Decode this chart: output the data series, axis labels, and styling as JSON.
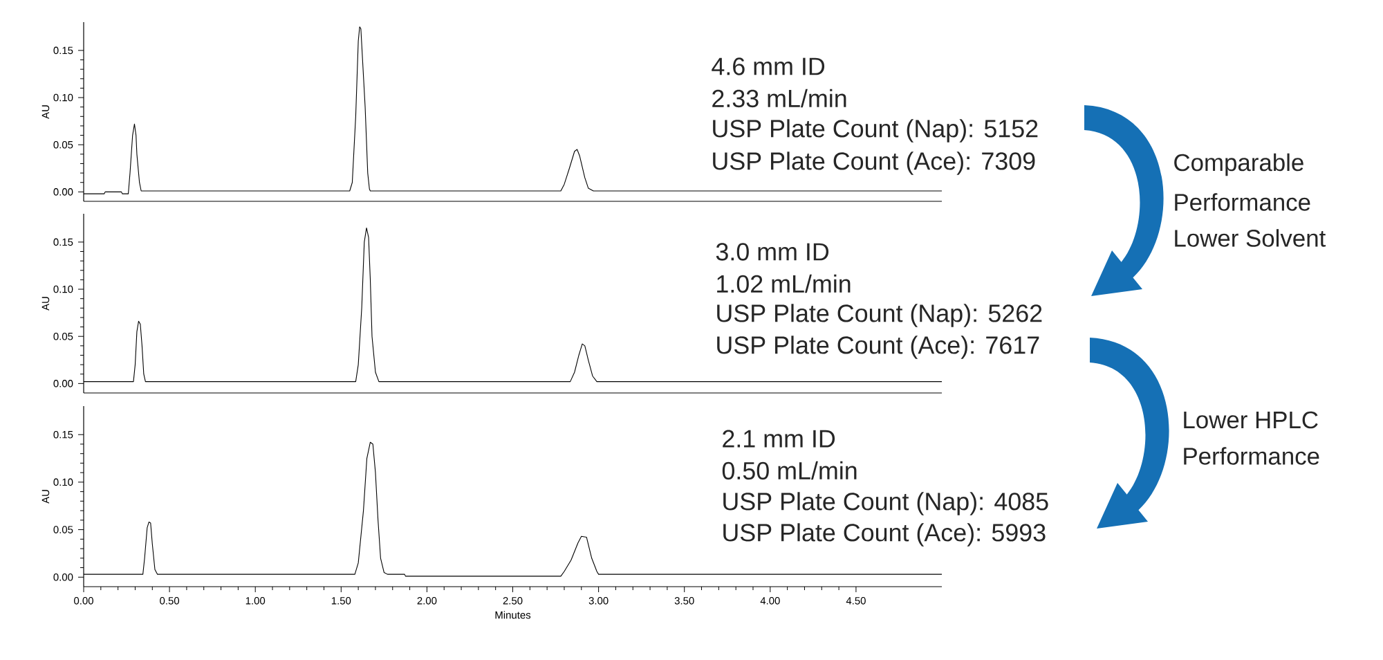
{
  "chart_data": [
    {
      "type": "line",
      "ylabel": "AU",
      "xlim": [
        0,
        5.0
      ],
      "ylim": [
        -0.01,
        0.18
      ],
      "tick_labels": "y",
      "yticks": [
        {
          "value": 0,
          "label": "0.00"
        },
        {
          "value": 0.05,
          "label": "0.05"
        },
        {
          "value": 0.1,
          "label": "0.10"
        },
        {
          "value": 0.15,
          "label": "0.15"
        }
      ],
      "annotations": [
        "4.6 mm ID",
        "2.33 mL/min",
        "USP Plate Count (Nap): 5152",
        "USP Plate Count (Ace): 7309",
        "Comparable",
        "Performance",
        "Lower Solvent"
      ],
      "series": [
        {
          "color": "#000000",
          "x": [
            0,
            0.12,
            0.125,
            0.22,
            0.225,
            0.26,
            0.27,
            0.285,
            0.296,
            0.305,
            0.31,
            0.325,
            0.335,
            1.55,
            1.565,
            1.585,
            1.6,
            1.608,
            1.615,
            1.64,
            1.655,
            1.665,
            1.67,
            2.78,
            2.8,
            2.83,
            2.86,
            2.875,
            2.89,
            2.92,
            2.94,
            2.97,
            5.0
          ],
          "values": [
            -0.002,
            -0.002,
            0,
            0,
            -0.002,
            -0.002,
            0.02,
            0.06,
            0.072,
            0.06,
            0.04,
            0.01,
            0.001,
            0.001,
            0.01,
            0.08,
            0.16,
            0.175,
            0.173,
            0.09,
            0.02,
            0.003,
            0.001,
            0.001,
            0.008,
            0.025,
            0.043,
            0.045,
            0.038,
            0.015,
            0.004,
            0.001,
            0.001
          ]
        }
      ]
    },
    {
      "type": "line",
      "ylabel": "AU",
      "xlim": [
        0,
        5.0
      ],
      "ylim": [
        -0.01,
        0.18
      ],
      "tick_labels": "y",
      "yticks": [
        {
          "value": 0,
          "label": "0.00"
        },
        {
          "value": 0.05,
          "label": "0.05"
        },
        {
          "value": 0.1,
          "label": "0.10"
        },
        {
          "value": 0.15,
          "label": "0.15"
        }
      ],
      "annotations": [
        "3.0 mm ID",
        "1.02 mL/min",
        "USP Plate Count (Nap): 5262",
        "USP Plate Count (Ace): 7617",
        "Lower HPLC",
        "Performance"
      ],
      "series": [
        {
          "color": "#000000",
          "x": [
            0,
            0.29,
            0.3,
            0.31,
            0.32,
            0.33,
            0.34,
            0.35,
            0.36,
            1.585,
            1.6,
            1.62,
            1.635,
            1.648,
            1.66,
            1.67,
            1.68,
            1.7,
            1.72,
            2.835,
            2.86,
            2.885,
            2.905,
            2.92,
            2.94,
            2.965,
            2.99,
            5.0
          ],
          "values": [
            0.002,
            0.002,
            0.02,
            0.055,
            0.066,
            0.063,
            0.04,
            0.01,
            0.002,
            0.002,
            0.02,
            0.08,
            0.15,
            0.165,
            0.155,
            0.11,
            0.05,
            0.012,
            0.002,
            0.002,
            0.012,
            0.03,
            0.042,
            0.04,
            0.025,
            0.008,
            0.002,
            0.002
          ]
        }
      ]
    },
    {
      "type": "line",
      "xlabel": "Minutes",
      "ylabel": "AU",
      "xlim": [
        0,
        5.0
      ],
      "ylim": [
        -0.01,
        0.18
      ],
      "xticks": [
        {
          "value": 0,
          "label": "0.00"
        },
        {
          "value": 0.5,
          "label": "0.50"
        },
        {
          "value": 1.0,
          "label": "1.00"
        },
        {
          "value": 1.5,
          "label": "1.50"
        },
        {
          "value": 2.0,
          "label": "2.00"
        },
        {
          "value": 2.5,
          "label": "2.50"
        },
        {
          "value": 3.0,
          "label": "3.00"
        },
        {
          "value": 3.5,
          "label": "3.50"
        },
        {
          "value": 4.0,
          "label": "4.00"
        },
        {
          "value": 4.5,
          "label": "4.50"
        }
      ],
      "yticks": [
        {
          "value": 0,
          "label": "0.00"
        },
        {
          "value": 0.05,
          "label": "0.05"
        },
        {
          "value": 0.1,
          "label": "0.10"
        },
        {
          "value": 0.15,
          "label": "0.15"
        }
      ],
      "annotations": [
        "2.1 mm ID",
        "0.50 mL/min",
        "USP Plate Count (Nap): 4085",
        "USP Plate Count (Ace): 5993"
      ],
      "series": [
        {
          "color": "#000000",
          "x": [
            0,
            0.345,
            0.355,
            0.37,
            0.38,
            0.39,
            0.4,
            0.415,
            0.43,
            1.58,
            1.6,
            1.63,
            1.65,
            1.67,
            1.685,
            1.7,
            1.715,
            1.73,
            1.75,
            1.77,
            1.87,
            1.875,
            2.78,
            2.8,
            2.84,
            2.88,
            2.9,
            2.93,
            2.96,
            2.99,
            3.0,
            5.0
          ],
          "values": [
            0.003,
            0.003,
            0.02,
            0.052,
            0.058,
            0.057,
            0.035,
            0.008,
            0.003,
            0.003,
            0.015,
            0.07,
            0.125,
            0.142,
            0.14,
            0.11,
            0.06,
            0.02,
            0.005,
            0.003,
            0.003,
            0.001,
            0.001,
            0.006,
            0.018,
            0.036,
            0.043,
            0.042,
            0.02,
            0.006,
            0.003,
            0.003
          ]
        }
      ]
    }
  ]
}
